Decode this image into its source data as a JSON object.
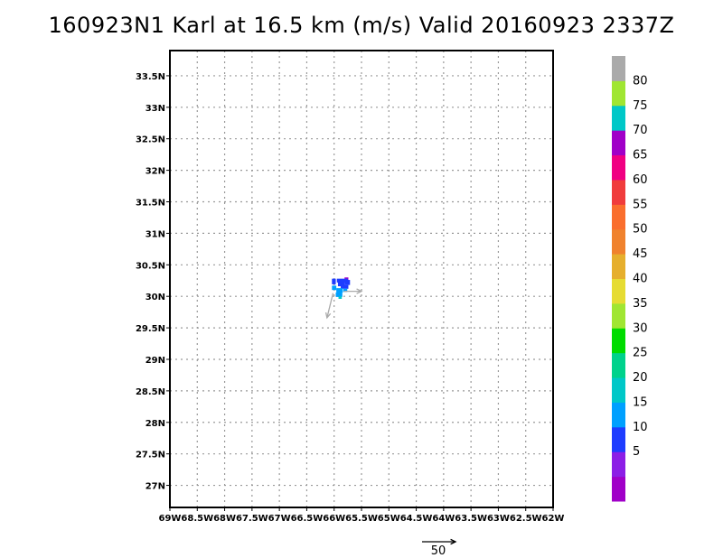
{
  "chart_data": {
    "type": "heatmap",
    "title": "160923N1 Karl at 16.5 km (m/s) Valid 20160923  2337Z",
    "x_ticks": [
      {
        "value": -69.0,
        "label": "69W"
      },
      {
        "value": -68.5,
        "label": "68.5W"
      },
      {
        "value": -68.0,
        "label": "68W"
      },
      {
        "value": -67.5,
        "label": "67.5W"
      },
      {
        "value": -67.0,
        "label": "67W"
      },
      {
        "value": -66.5,
        "label": "66.5W"
      },
      {
        "value": -66.0,
        "label": "66W"
      },
      {
        "value": -65.5,
        "label": "65.5W"
      },
      {
        "value": -65.0,
        "label": "65W"
      },
      {
        "value": -64.5,
        "label": "64.5W"
      },
      {
        "value": -64.0,
        "label": "64W"
      },
      {
        "value": -63.5,
        "label": "63.5W"
      },
      {
        "value": -63.0,
        "label": "63W"
      },
      {
        "value": -62.5,
        "label": "62.5W"
      },
      {
        "value": -62.0,
        "label": "62W"
      }
    ],
    "y_ticks": [
      {
        "value": 27.0,
        "label": "27N"
      },
      {
        "value": 27.5,
        "label": "27.5N"
      },
      {
        "value": 28.0,
        "label": "28N"
      },
      {
        "value": 28.5,
        "label": "28.5N"
      },
      {
        "value": 29.0,
        "label": "29N"
      },
      {
        "value": 29.5,
        "label": "29.5N"
      },
      {
        "value": 30.0,
        "label": "30N"
      },
      {
        "value": 30.5,
        "label": "30.5N"
      },
      {
        "value": 31.0,
        "label": "31N"
      },
      {
        "value": 31.5,
        "label": "31.5N"
      },
      {
        "value": 32.0,
        "label": "32N"
      },
      {
        "value": 32.5,
        "label": "32.5N"
      },
      {
        "value": 33.0,
        "label": "33N"
      },
      {
        "value": 33.5,
        "label": "33.5N"
      }
    ],
    "xlim": [
      -69.0,
      -62.0
    ],
    "ylim": [
      26.65,
      33.9
    ],
    "grid": true,
    "colorbar": {
      "levels": [
        {
          "label": "",
          "color": "#a000c8"
        },
        {
          "label": "5",
          "color": "#8c1ee6"
        },
        {
          "label": "10",
          "color": "#1e3cff"
        },
        {
          "label": "15",
          "color": "#00a0ff"
        },
        {
          "label": "20",
          "color": "#00c8c8"
        },
        {
          "label": "25",
          "color": "#00d28c"
        },
        {
          "label": "30",
          "color": "#00dc00"
        },
        {
          "label": "35",
          "color": "#a0e632"
        },
        {
          "label": "40",
          "color": "#e6dc32"
        },
        {
          "label": "45",
          "color": "#e6af2d"
        },
        {
          "label": "50",
          "color": "#f0822d"
        },
        {
          "label": "55",
          "color": "#fa6e2d"
        },
        {
          "label": "60",
          "color": "#f03c3c"
        },
        {
          "label": "65",
          "color": "#f00082"
        },
        {
          "label": "70",
          "color": "#a000c8"
        },
        {
          "label": "75",
          "color": "#00c8c8"
        },
        {
          "label": "80",
          "color": "#a0e632"
        },
        {
          "label": "",
          "color": "#aaaaaa"
        }
      ]
    },
    "cells": [
      {
        "lon": -65.81,
        "lat": 30.25,
        "w": 0.07,
        "h": 0.05,
        "color": "#a000c8"
      },
      {
        "lon": -66.04,
        "lat": 30.19,
        "w": 0.07,
        "h": 0.09,
        "color": "#1e3cff"
      },
      {
        "lon": -65.95,
        "lat": 30.22,
        "w": 0.2,
        "h": 0.06,
        "color": "#1e3cff"
      },
      {
        "lon": -65.93,
        "lat": 30.16,
        "w": 0.13,
        "h": 0.07,
        "color": "#1e3cff"
      },
      {
        "lon": -65.8,
        "lat": 30.18,
        "w": 0.09,
        "h": 0.08,
        "color": "#1e3cff"
      },
      {
        "lon": -65.88,
        "lat": 30.12,
        "w": 0.14,
        "h": 0.06,
        "color": "#1e3cff"
      },
      {
        "lon": -66.04,
        "lat": 30.1,
        "w": 0.08,
        "h": 0.07,
        "color": "#00a0ff"
      },
      {
        "lon": -65.96,
        "lat": 30.06,
        "w": 0.12,
        "h": 0.07,
        "color": "#00a0ff"
      },
      {
        "lon": -65.83,
        "lat": 30.07,
        "w": 0.07,
        "h": 0.05,
        "color": "#00a0ff"
      },
      {
        "lon": -65.97,
        "lat": 29.99,
        "w": 0.12,
        "h": 0.07,
        "color": "#00a0ff"
      },
      {
        "lon": -65.92,
        "lat": 29.96,
        "w": 0.06,
        "h": 0.04,
        "color": "#00c8c8"
      }
    ],
    "vectors": [
      {
        "lon": -65.82,
        "lat": 30.08,
        "dlon": 0.32,
        "dlat": 0.0
      },
      {
        "lon": -66.02,
        "lat": 30.05,
        "dlon": -0.11,
        "dlat": -0.39
      }
    ],
    "reference_vector": {
      "label": "50"
    }
  }
}
